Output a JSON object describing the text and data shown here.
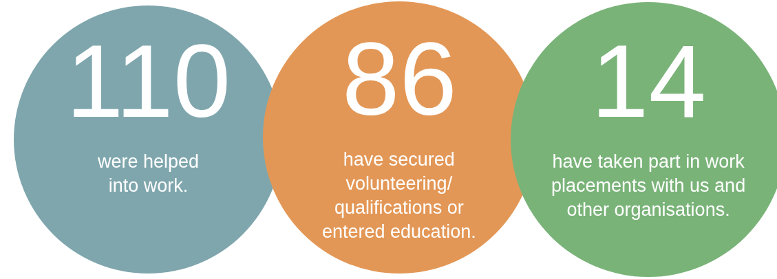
{
  "chart_data": {
    "type": "other",
    "categories": [
      "were helped\ninto work.",
      "have secured\nvolunteering/\nqualifications or\nentered education.",
      "have taken part in work\nplacements with us and\nother organisations."
    ],
    "values": [
      110,
      86,
      14
    ],
    "colors": [
      "#7fa6ad",
      "#e39756",
      "#79b378"
    ],
    "data_labels": true
  }
}
